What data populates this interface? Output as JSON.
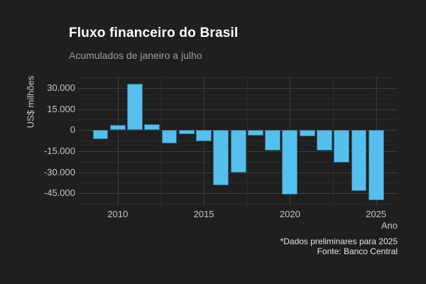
{
  "figure": {
    "title": "Fluxo financeiro do Brasil",
    "subtitle": "Acumulados de janeiro a julho",
    "caption_line1": "*Dados preliminares para 2025",
    "caption_line2": "Fonte: Banco Central"
  },
  "chart_data": {
    "type": "bar",
    "title": "Fluxo financeiro do Brasil",
    "subtitle": "Acumulados de janeiro a julho",
    "xlabel": "Ano",
    "ylabel": "US$ milhões",
    "x": [
      2009,
      2010,
      2011,
      2012,
      2013,
      2014,
      2015,
      2016,
      2017,
      2018,
      2019,
      2020,
      2021,
      2022,
      2023,
      2024,
      2025
    ],
    "values": [
      -6700,
      3700,
      33000,
      4000,
      -9500,
      -3000,
      -7900,
      -39400,
      -30200,
      -3900,
      -14600,
      -45800,
      -4500,
      -14700,
      -23100,
      -43400,
      -50100
    ],
    "x_ticks": [
      2010,
      2015,
      2020,
      2025
    ],
    "y_ticks": [
      30000,
      15000,
      0,
      -15000,
      -30000,
      -45000
    ],
    "y_tick_labels": [
      "30.000",
      "15.000",
      "0",
      "-15.000",
      "-30.000",
      "-45.000"
    ],
    "y_minor_step": 7500,
    "xlim": [
      2007.7,
      2026.25
    ],
    "ylim": [
      -54000,
      38000
    ],
    "bar_width_fraction": 0.9,
    "grid": "horizontal and vertical, major + minor, dark theme",
    "legend_position": "none",
    "caption": "*Dados preliminares para 2025 / Fonte: Banco Central",
    "unit": "US$ milhões"
  },
  "colors": {
    "background": "#1f1f1f",
    "bar": "#56bfec",
    "grid_major": "#3c3c3c",
    "grid_minor": "#2b2b2b",
    "title": "#ffffff",
    "subtitle": "#9c9c9c",
    "tick_label": "#c6c6c6",
    "axis_title": "#c6c6c6",
    "caption": "#e3e3e3"
  }
}
